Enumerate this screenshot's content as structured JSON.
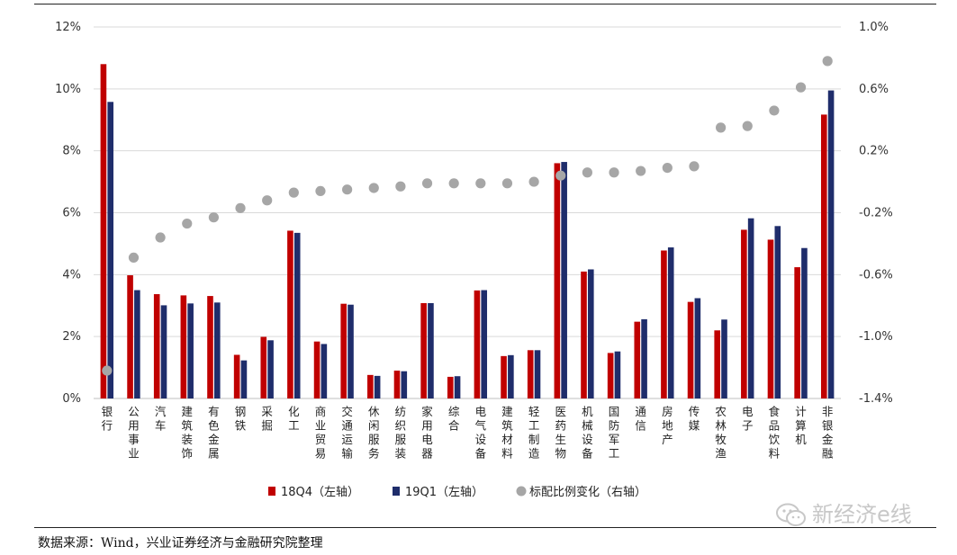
{
  "source_text": "数据来源：Wind，兴业证券经济与金融研究院整理",
  "watermark_text": "新经济e线",
  "watermark_icon": "wechat-icon",
  "chart_data": {
    "type": "bar",
    "categories": [
      "银行",
      "公用事业",
      "汽车",
      "建筑装饰",
      "有色金属",
      "钢铁",
      "采掘",
      "化工",
      "商业贸易",
      "交通运输",
      "休闲服务",
      "纺织服装",
      "家用电器",
      "综合",
      "电气设备",
      "建筑材料",
      "轻工制造",
      "医药生物",
      "机械设备",
      "国防军工",
      "通信",
      "房地产",
      "传媒",
      "农林牧渔",
      "电子",
      "食品饮料",
      "计算机",
      "非银金融"
    ],
    "series": [
      {
        "name": "18Q4（左轴）",
        "axis": "left",
        "type": "bar",
        "color": "#c00000",
        "values": [
          10.8,
          3.98,
          3.37,
          3.33,
          3.31,
          1.41,
          1.99,
          5.42,
          1.84,
          3.06,
          0.76,
          0.9,
          3.08,
          0.7,
          3.49,
          1.37,
          1.56,
          7.6,
          4.1,
          1.47,
          2.48,
          4.78,
          3.12,
          2.2,
          5.45,
          5.13,
          4.24,
          9.17
        ]
      },
      {
        "name": "19Q1（左轴）",
        "axis": "left",
        "type": "bar",
        "color": "#1f2d6b",
        "values": [
          9.58,
          3.5,
          3.01,
          3.07,
          3.1,
          1.23,
          1.88,
          5.35,
          1.76,
          3.03,
          0.73,
          0.88,
          3.08,
          0.72,
          3.5,
          1.4,
          1.56,
          7.64,
          4.17,
          1.52,
          2.56,
          4.88,
          3.24,
          2.55,
          5.82,
          5.57,
          4.86,
          9.95
        ]
      },
      {
        "name": "标配比例变化（右轴）",
        "axis": "right",
        "type": "scatter",
        "color": "#a6a6a6",
        "values": [
          -1.22,
          -0.49,
          -0.36,
          -0.27,
          -0.23,
          -0.17,
          -0.12,
          -0.07,
          -0.06,
          -0.05,
          -0.04,
          -0.03,
          -0.01,
          -0.01,
          -0.01,
          -0.01,
          0.0,
          0.04,
          0.06,
          0.06,
          0.07,
          0.09,
          0.1,
          0.35,
          0.36,
          0.46,
          0.61,
          0.78
        ]
      }
    ],
    "y_left": {
      "min": 0,
      "max": 12,
      "step": 2,
      "format": "percent0",
      "ticks": [
        "0%",
        "2%",
        "4%",
        "6%",
        "8%",
        "10%",
        "12%"
      ]
    },
    "y_right": {
      "min": -1.4,
      "max": 1.0,
      "step": 0.4,
      "format": "percent1",
      "ticks": [
        "-1.4%",
        "-1.0%",
        "-0.6%",
        "-0.2%",
        "0.2%",
        "0.6%",
        "1.0%"
      ]
    },
    "xlabel": "",
    "ylabel": "",
    "grid": true,
    "legend_position": "bottom"
  }
}
